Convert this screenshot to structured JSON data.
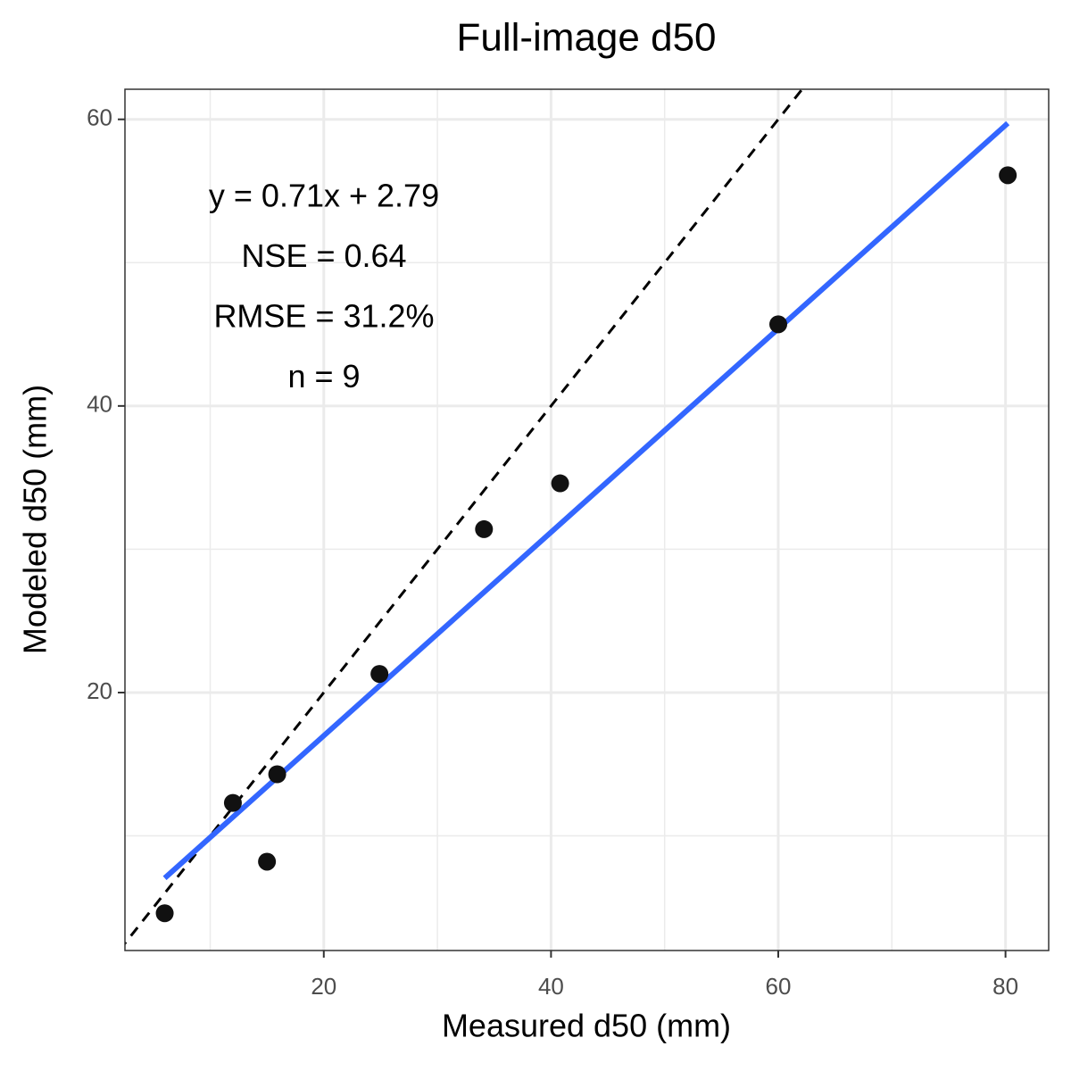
{
  "chart_data": {
    "type": "scatter",
    "title": "Full-image d50",
    "xlabel": "Measured d50 (mm)",
    "ylabel": "Modeled d50 (mm)",
    "xlim": [
      2.5,
      83.8
    ],
    "ylim": [
      2.0,
      62.1
    ],
    "xticks": [
      20,
      40,
      60,
      80
    ],
    "yticks": [
      20,
      40,
      60
    ],
    "minor_xticks": [
      10,
      30,
      50,
      70
    ],
    "minor_yticks": [
      10,
      30,
      50
    ],
    "grid": true,
    "points": {
      "color": "#111111",
      "x": [
        6.0,
        12.0,
        15.0,
        15.9,
        24.9,
        34.1,
        40.8,
        60.0,
        80.2
      ],
      "values": [
        4.6,
        12.3,
        8.2,
        14.3,
        21.3,
        31.4,
        34.6,
        45.7,
        56.1
      ]
    },
    "fit_line": {
      "color": "#3366ff",
      "x": [
        6.0,
        80.2
      ],
      "values": [
        7.05,
        59.73
      ]
    },
    "identity_line": {
      "color": "#000000",
      "x": [
        2.0,
        62.1
      ],
      "values": [
        2.0,
        62.1
      ]
    },
    "annotations": [
      "y = 0.71x + 2.79",
      "NSE =  0.64",
      "RMSE = 31.2%",
      "n = 9"
    ]
  }
}
